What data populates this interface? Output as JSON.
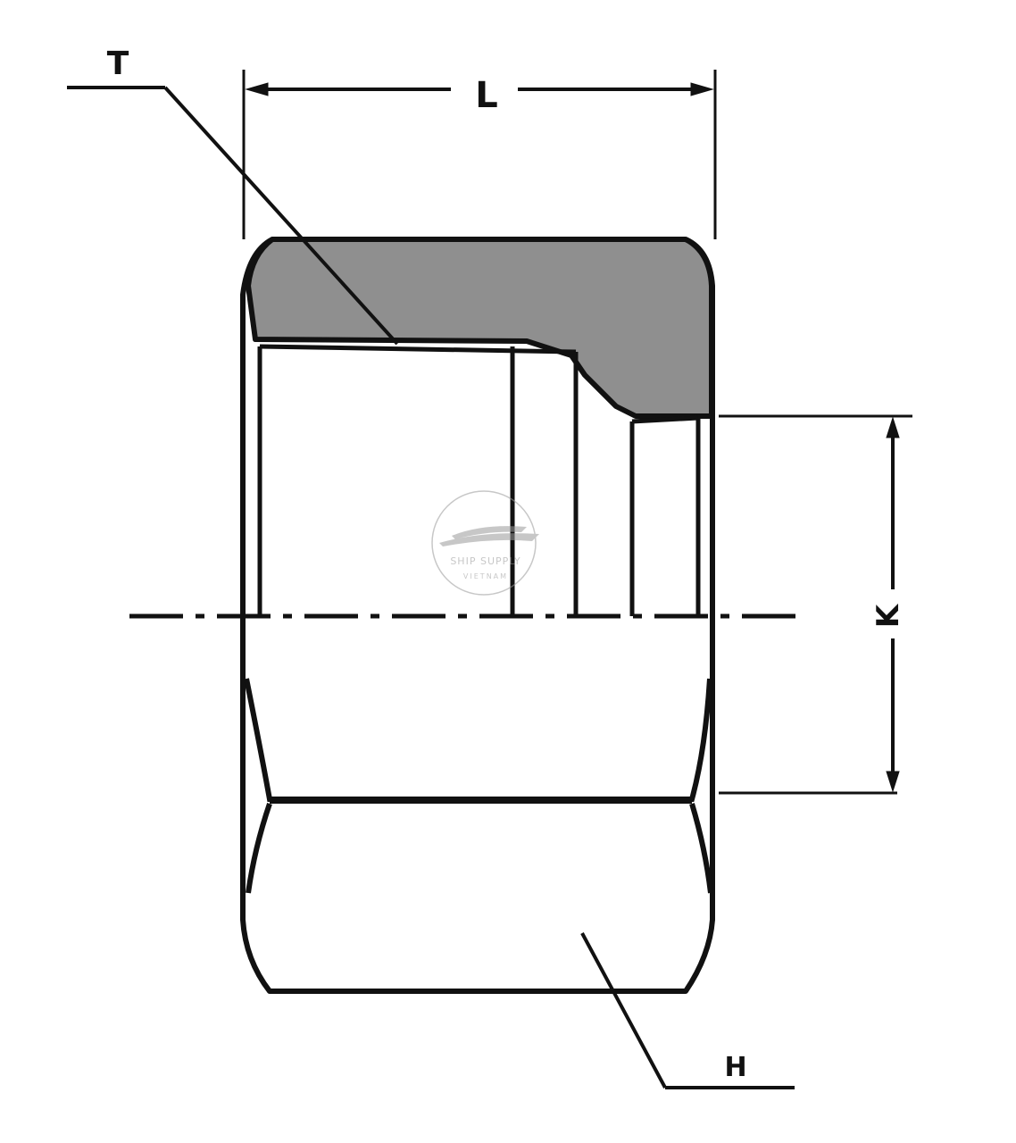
{
  "labels": {
    "thread": "T",
    "length": "L",
    "hex": "H",
    "bore": "K"
  },
  "watermark": {
    "line1": "SHIP SUPPLY",
    "line2": "VIETNAM",
    "icon": "ship-icon"
  },
  "colors": {
    "ink": "#111111",
    "section_fill": "#8f8f8f",
    "background": "#ffffff",
    "watermark": "#9a9a9a"
  }
}
